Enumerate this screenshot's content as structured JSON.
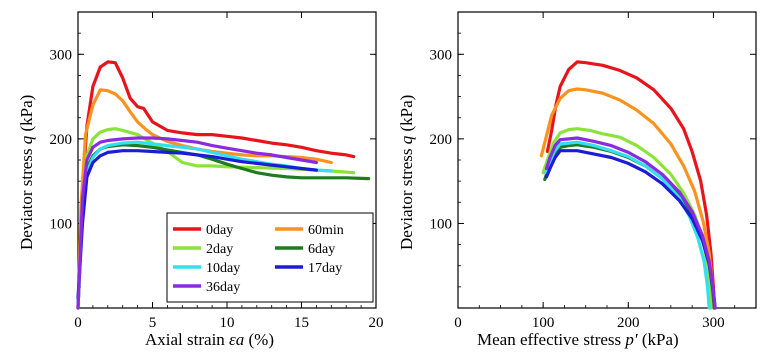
{
  "chart_data": [
    {
      "type": "line",
      "xlabel": "Axial strain",
      "xlabel_symbol": "εa",
      "xlabel_unit": "(%)",
      "ylabel": "Deviator stress",
      "ylabel_symbol": "q",
      "ylabel_unit": "(kPa)",
      "xlim": [
        0,
        20
      ],
      "ylim": [
        0,
        350
      ],
      "xticks": [
        "0",
        "5",
        "10",
        "15",
        "20"
      ],
      "yticks": [
        "100",
        "200",
        "300"
      ],
      "legend_position": "bottom-right",
      "series": [
        {
          "name": "0day",
          "color": "#e8141c",
          "x": [
            0,
            0.3,
            0.6,
            1,
            1.5,
            2,
            2.5,
            3,
            3.5,
            4,
            4.4,
            5,
            6,
            7,
            8,
            9,
            10,
            11,
            12,
            13,
            14,
            15,
            16,
            17,
            18,
            18.5
          ],
          "y": [
            0,
            140,
            215,
            262,
            285,
            291,
            290,
            272,
            248,
            238,
            236,
            220,
            210,
            207,
            205,
            205,
            203,
            201,
            198,
            195,
            193,
            190,
            186,
            183,
            181,
            179
          ]
        },
        {
          "name": "60min",
          "color": "#f7931e",
          "x": [
            0,
            0.2,
            0.5,
            1,
            1.5,
            2,
            2.5,
            3,
            3.5,
            4,
            4.5,
            5,
            6,
            7,
            8,
            9,
            10,
            11,
            12,
            13,
            14,
            15,
            16,
            17
          ],
          "y": [
            0,
            120,
            205,
            240,
            258,
            257,
            253,
            245,
            232,
            220,
            212,
            205,
            197,
            192,
            188,
            185,
            183,
            181,
            180,
            180,
            179,
            178,
            176,
            172
          ]
        },
        {
          "name": "2day",
          "color": "#8be33a",
          "x": [
            0,
            0.3,
            0.6,
            1,
            1.5,
            2,
            2.5,
            3,
            4,
            5,
            6,
            7,
            8,
            9,
            10,
            12,
            14,
            16,
            17,
            18.5
          ],
          "y": [
            0,
            125,
            180,
            200,
            208,
            211,
            212,
            210,
            205,
            195,
            185,
            172,
            168,
            168,
            167,
            166,
            165,
            163,
            162,
            160
          ]
        },
        {
          "name": "6day",
          "color": "#1e7b22",
          "x": [
            0,
            0.3,
            0.6,
            1,
            1.5,
            2,
            3,
            4,
            5,
            6,
            7,
            8,
            9,
            10,
            11,
            12,
            13,
            14,
            15,
            16,
            17,
            18,
            19.5
          ],
          "y": [
            0,
            120,
            165,
            180,
            188,
            191,
            193,
            192,
            190,
            187,
            184,
            181,
            176,
            170,
            165,
            160,
            157,
            155,
            154,
            154,
            154,
            154,
            153
          ]
        },
        {
          "name": "10day",
          "color": "#33e0f0",
          "x": [
            0,
            0.3,
            0.6,
            1,
            1.5,
            2,
            3,
            4,
            5,
            6,
            7,
            8,
            9,
            10,
            11,
            12,
            13,
            14,
            15,
            16,
            17
          ],
          "y": [
            0,
            110,
            160,
            178,
            188,
            192,
            195,
            196,
            194,
            192,
            190,
            188,
            184,
            180,
            176,
            173,
            170,
            168,
            165,
            163,
            162
          ]
        },
        {
          "name": "17day",
          "color": "#1c1cd6",
          "x": [
            0,
            0.3,
            0.6,
            1,
            1.5,
            2,
            3,
            4,
            5,
            6,
            7,
            8,
            9,
            10,
            11,
            12,
            13,
            14,
            15,
            16
          ],
          "y": [
            12,
            100,
            155,
            172,
            180,
            184,
            186,
            186,
            185,
            184,
            183,
            181,
            179,
            176,
            173,
            171,
            169,
            167,
            165,
            163
          ]
        },
        {
          "name": "36day",
          "color": "#8a2be2",
          "x": [
            0,
            0.3,
            0.6,
            1,
            1.5,
            2,
            3,
            4,
            5,
            6,
            7,
            8,
            9,
            10,
            11,
            12,
            13,
            14,
            15,
            16
          ],
          "y": [
            0,
            130,
            175,
            190,
            196,
            198,
            200,
            201,
            201,
            200,
            198,
            196,
            192,
            189,
            186,
            183,
            181,
            178,
            175,
            172
          ]
        }
      ]
    },
    {
      "type": "line",
      "xlabel": "Mean effective stress",
      "xlabel_symbol": "p′",
      "xlabel_unit": "(kPa)",
      "ylabel": "Deviator stress",
      "ylabel_symbol": "q",
      "ylabel_unit": "(kPa)",
      "xlim": [
        0,
        350
      ],
      "ylim": [
        0,
        350
      ],
      "xticks": [
        "0",
        "100",
        "200",
        "300"
      ],
      "yticks": [
        "100",
        "200",
        "300"
      ],
      "series": [
        {
          "name": "0day",
          "color": "#e8141c",
          "x": [
            105,
            110,
            115,
            120,
            130,
            140,
            150,
            170,
            190,
            210,
            230,
            250,
            265,
            275,
            285,
            292,
            297,
            300,
            301
          ],
          "y": [
            185,
            210,
            240,
            262,
            282,
            291,
            290,
            287,
            281,
            272,
            258,
            236,
            212,
            185,
            150,
            110,
            65,
            25,
            0
          ]
        },
        {
          "name": "60min",
          "color": "#f7931e",
          "x": [
            98,
            103,
            110,
            120,
            130,
            140,
            150,
            170,
            190,
            210,
            230,
            250,
            265,
            278,
            288,
            295,
            299,
            300
          ],
          "y": [
            180,
            200,
            228,
            248,
            257,
            259,
            258,
            254,
            246,
            234,
            218,
            194,
            168,
            138,
            102,
            65,
            25,
            0
          ]
        },
        {
          "name": "2day",
          "color": "#8be33a",
          "x": [
            100,
            105,
            112,
            120,
            130,
            140,
            155,
            170,
            190,
            210,
            230,
            250,
            265,
            278,
            288,
            294,
            297
          ],
          "y": [
            160,
            175,
            195,
            207,
            211,
            212,
            210,
            206,
            202,
            192,
            178,
            158,
            136,
            110,
            80,
            45,
            0
          ]
        },
        {
          "name": "6day",
          "color": "#1e7b22",
          "x": [
            102,
            106,
            112,
            120,
            130,
            140,
            160,
            180,
            200,
            220,
            240,
            260,
            275,
            287,
            295,
            299,
            301
          ],
          "y": [
            152,
            165,
            180,
            190,
            192,
            193,
            190,
            185,
            178,
            168,
            153,
            132,
            110,
            82,
            52,
            22,
            0
          ]
        },
        {
          "name": "10day",
          "color": "#33e0f0",
          "x": [
            103,
            107,
            113,
            120,
            130,
            140,
            160,
            180,
            200,
            220,
            240,
            260,
            272,
            282,
            289,
            293,
            295
          ],
          "y": [
            160,
            170,
            185,
            194,
            195,
            196,
            192,
            186,
            179,
            168,
            153,
            130,
            108,
            82,
            55,
            25,
            0
          ]
        },
        {
          "name": "17day",
          "color": "#1c1cd6",
          "x": [
            104,
            108,
            114,
            120,
            130,
            140,
            160,
            180,
            200,
            220,
            240,
            260,
            275,
            287,
            295,
            300,
            302
          ],
          "y": [
            155,
            165,
            178,
            186,
            186,
            186,
            182,
            178,
            171,
            161,
            147,
            127,
            106,
            80,
            52,
            20,
            0
          ]
        },
        {
          "name": "36day",
          "color": "#8a2be2",
          "x": [
            104,
            108,
            114,
            120,
            130,
            140,
            160,
            180,
            200,
            220,
            240,
            260,
            275,
            287,
            295,
            300,
            302
          ],
          "y": [
            165,
            178,
            192,
            199,
            200,
            201,
            197,
            192,
            184,
            173,
            158,
            137,
            114,
            86,
            55,
            22,
            0
          ]
        }
      ]
    }
  ]
}
